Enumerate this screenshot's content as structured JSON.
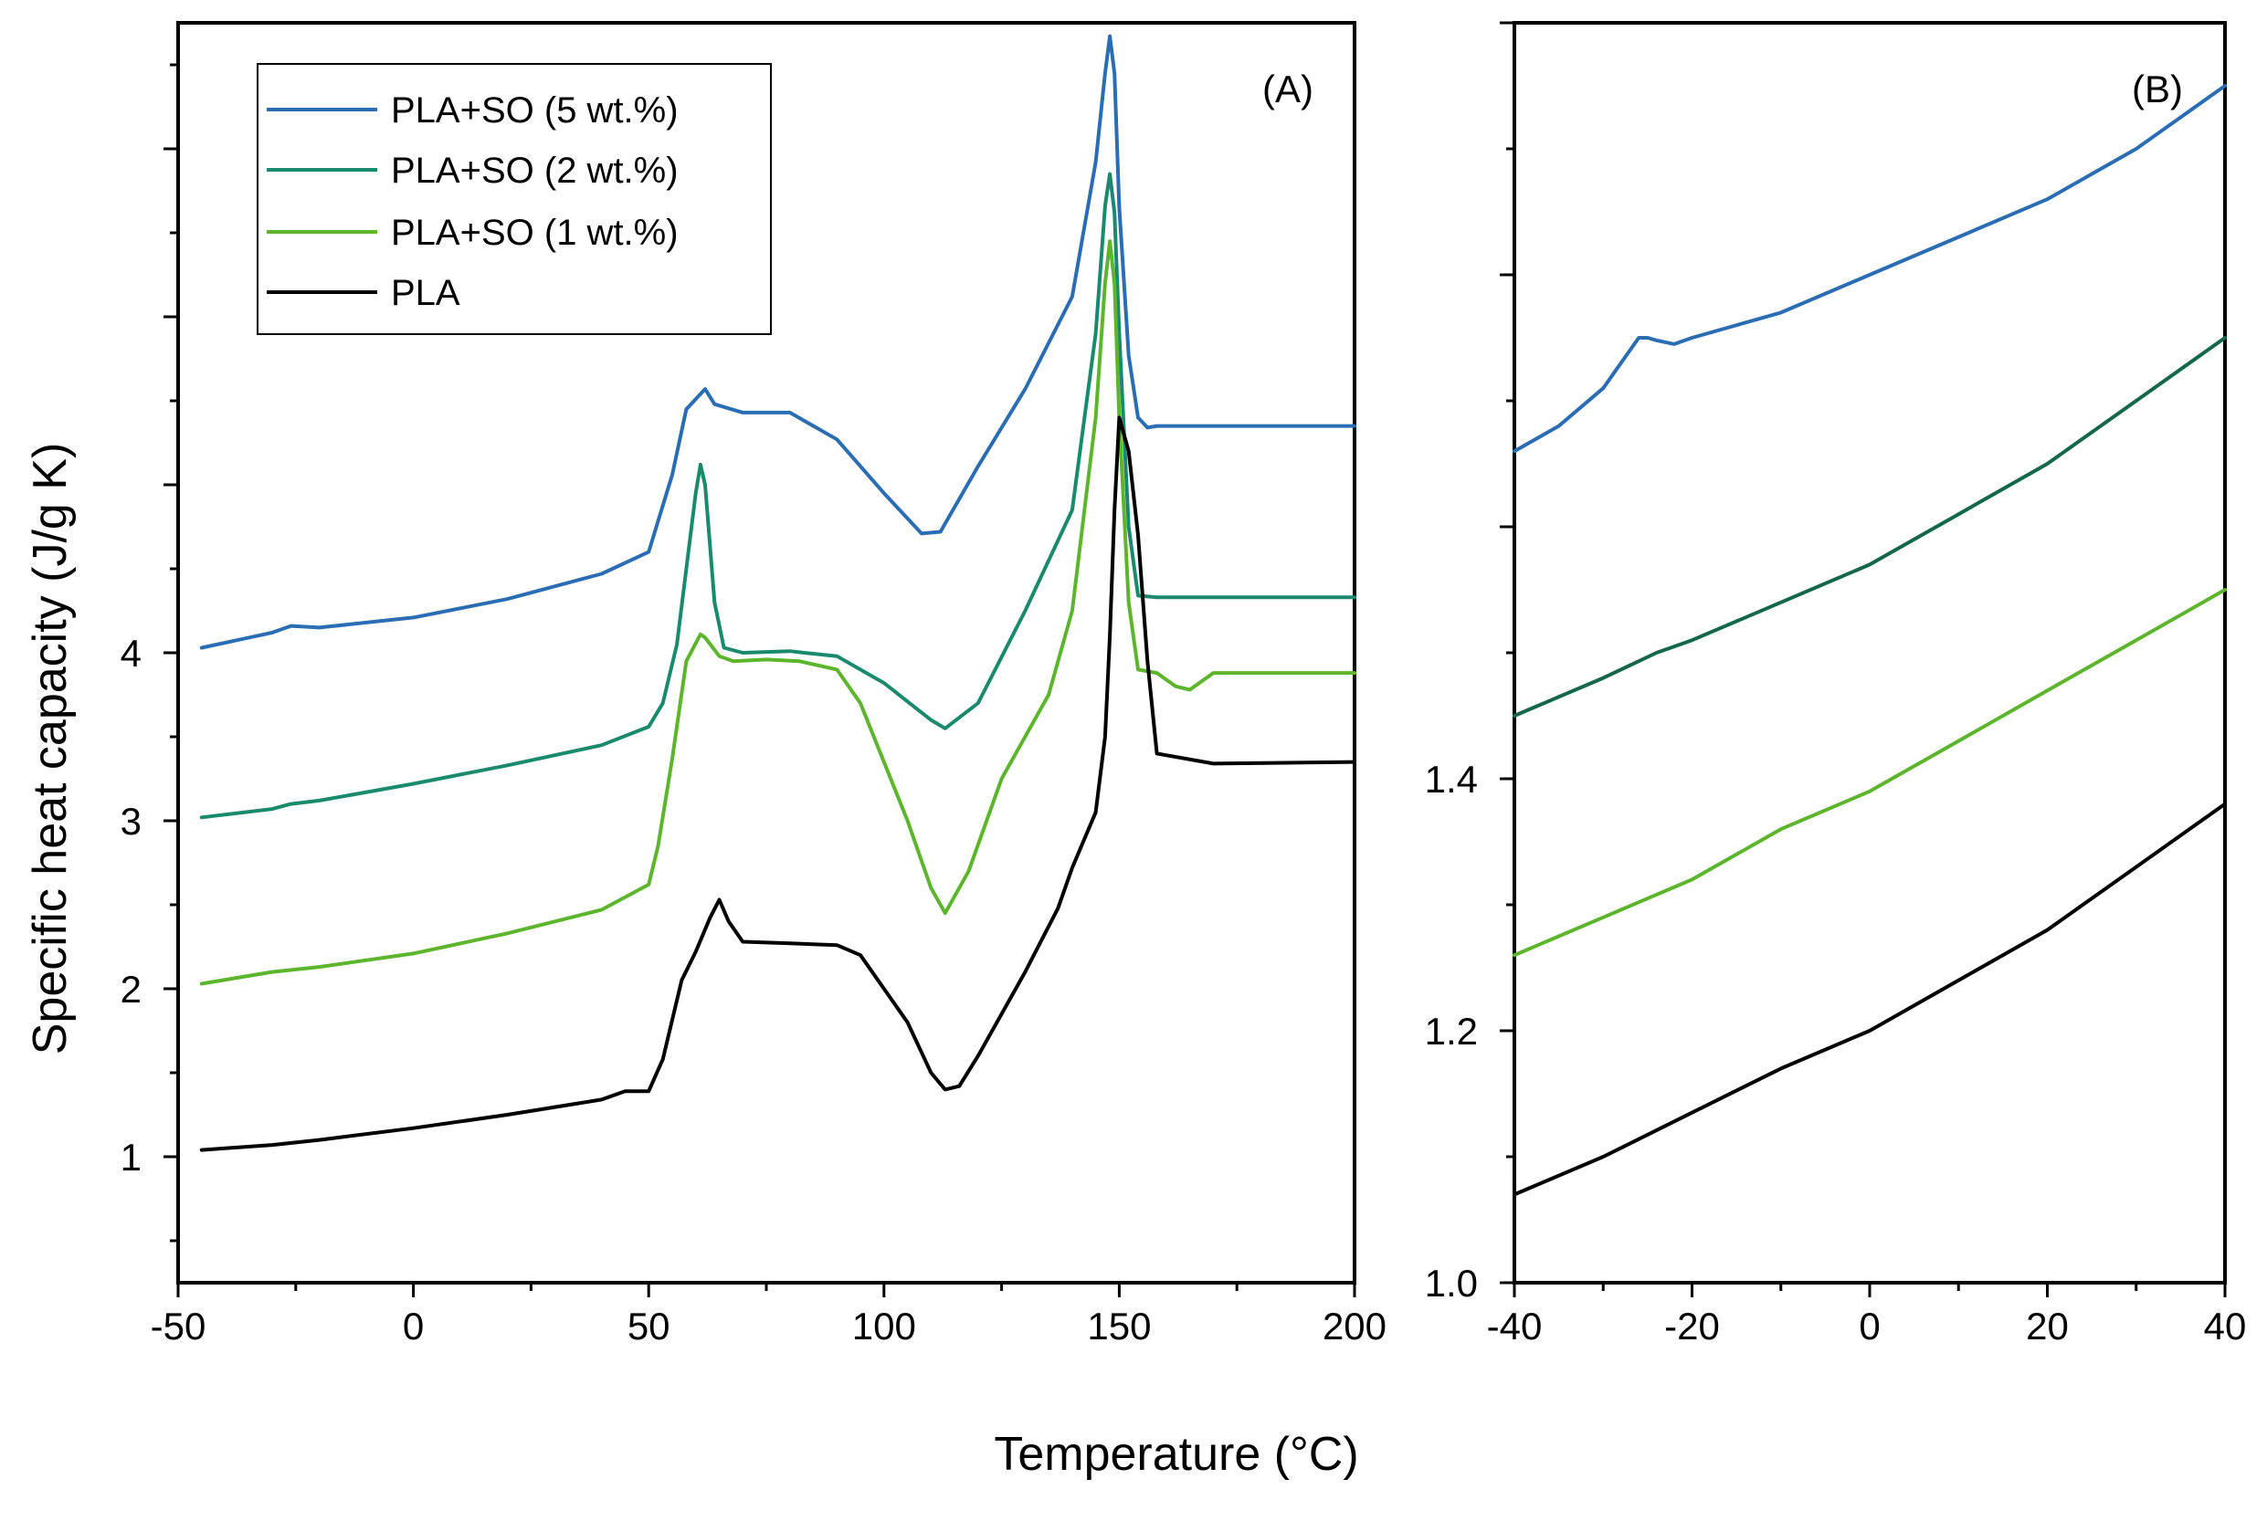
{
  "chart_data": [
    {
      "type": "line",
      "panel_label": "(A)",
      "xlabel": "Temperature (°C)",
      "ylabel": "Specific heat capacity (J/g K)",
      "xlim": [
        -50,
        200
      ],
      "ylim": [
        0.25,
        7.75
      ],
      "xticks": [
        -50,
        0,
        50,
        100,
        150,
        200
      ],
      "xtick_labels": [
        "-50",
        "0",
        "50",
        "100",
        "150",
        "200"
      ],
      "yticks": [
        1,
        2,
        3,
        4
      ],
      "ytick_labels": [
        "1",
        "2",
        "3",
        "4"
      ],
      "legend": {
        "position": "top-left",
        "entries": [
          "PLA+SO (5 wt.%)",
          "PLA+SO (2 wt.%)",
          "PLA+SO (1 wt.%)",
          "PLA"
        ]
      },
      "series": [
        {
          "name": "PLA+SO (5 wt.%)",
          "color": "#2a6db3",
          "x": [
            -45,
            -30,
            -26,
            -20,
            0,
            20,
            40,
            50,
            55,
            58,
            62,
            64,
            70,
            80,
            90,
            100,
            108,
            112,
            120,
            130,
            140,
            145,
            147,
            148,
            149,
            150,
            152,
            154,
            156,
            158,
            170,
            200
          ],
          "y": [
            4.03,
            4.12,
            4.16,
            4.15,
            4.21,
            4.32,
            4.47,
            4.6,
            5.06,
            5.45,
            5.57,
            5.48,
            5.43,
            5.43,
            5.27,
            4.95,
            4.71,
            4.72,
            5.11,
            5.57,
            6.12,
            6.92,
            7.45,
            7.67,
            7.45,
            6.65,
            5.77,
            5.4,
            5.34,
            5.35,
            5.35,
            5.35
          ]
        },
        {
          "name": "PLA+SO (2 wt.%)",
          "color": "#1a8a6e",
          "x": [
            -45,
            -30,
            -26,
            -20,
            0,
            20,
            40,
            50,
            53,
            56,
            58,
            60,
            61,
            62,
            64,
            66,
            70,
            80,
            83,
            90,
            100,
            110,
            113,
            120,
            130,
            140,
            145,
            147,
            148,
            149,
            150,
            152,
            154,
            158,
            170,
            200
          ],
          "y": [
            3.02,
            3.07,
            3.1,
            3.12,
            3.22,
            3.33,
            3.45,
            3.56,
            3.7,
            4.05,
            4.5,
            4.95,
            5.12,
            5.0,
            4.3,
            4.03,
            4.0,
            4.01,
            4.0,
            3.98,
            3.82,
            3.6,
            3.55,
            3.7,
            4.25,
            4.85,
            5.9,
            6.66,
            6.85,
            6.62,
            5.9,
            4.75,
            4.34,
            4.33,
            4.33,
            4.33
          ]
        },
        {
          "name": "PLA+SO (1 wt.%)",
          "color": "#5cb52c",
          "x": [
            -45,
            -30,
            -20,
            0,
            20,
            40,
            50,
            52,
            55,
            58,
            61,
            62,
            65,
            68,
            75,
            82,
            90,
            95,
            100,
            105,
            110,
            113,
            118,
            125,
            135,
            140,
            145,
            147,
            148,
            149,
            150,
            152,
            154,
            158,
            162,
            165,
            170,
            185,
            200
          ],
          "y": [
            2.03,
            2.1,
            2.13,
            2.21,
            2.33,
            2.47,
            2.62,
            2.85,
            3.37,
            3.95,
            4.11,
            4.09,
            3.98,
            3.95,
            3.96,
            3.95,
            3.9,
            3.7,
            3.35,
            3.0,
            2.6,
            2.45,
            2.7,
            3.25,
            3.75,
            4.25,
            5.4,
            6.2,
            6.45,
            6.2,
            5.4,
            4.3,
            3.9,
            3.88,
            3.8,
            3.78,
            3.88,
            3.88,
            3.88
          ]
        },
        {
          "name": "PLA",
          "color": "#000000",
          "x": [
            -45,
            -30,
            -20,
            0,
            20,
            40,
            45,
            50,
            53,
            57,
            60,
            63,
            65,
            67,
            70,
            80,
            90,
            95,
            100,
            105,
            110,
            113,
            116,
            120,
            130,
            137,
            140,
            145,
            147,
            148,
            149,
            150,
            152,
            154,
            156,
            158,
            170,
            200
          ],
          "y": [
            1.04,
            1.07,
            1.1,
            1.17,
            1.25,
            1.34,
            1.39,
            1.39,
            1.58,
            2.05,
            2.22,
            2.42,
            2.53,
            2.4,
            2.28,
            2.27,
            2.26,
            2.2,
            2.0,
            1.8,
            1.5,
            1.4,
            1.42,
            1.6,
            2.1,
            2.48,
            2.72,
            3.05,
            3.5,
            4.1,
            4.85,
            5.4,
            5.2,
            4.7,
            3.95,
            3.4,
            3.34,
            3.35
          ]
        }
      ]
    },
    {
      "type": "line",
      "panel_label": "(B)",
      "xlabel": "Temperature (°C)",
      "xlim": [
        -40,
        40
      ],
      "ylim": [
        1.0,
        2.0
      ],
      "xticks": [
        -40,
        -20,
        0,
        20,
        40
      ],
      "xtick_labels": [
        "-40",
        "-20",
        "0",
        "20",
        "40"
      ],
      "yticks": [
        1.0,
        1.2,
        1.4
      ],
      "ytick_labels": [
        "1.0",
        "1.2",
        "1.4"
      ],
      "series": [
        {
          "name": "PLA+SO (5 wt.%)",
          "color": "#2a6db3",
          "x": [
            -40,
            -35,
            -30,
            -28,
            -26,
            -25,
            -24,
            -22,
            -20,
            -10,
            0,
            10,
            20,
            30,
            40
          ],
          "y": [
            1.66,
            1.68,
            1.71,
            1.73,
            1.75,
            1.75,
            1.748,
            1.745,
            1.75,
            1.77,
            1.8,
            1.83,
            1.86,
            1.9,
            1.95
          ]
        },
        {
          "name": "PLA+SO (2 wt.%)",
          "color": "#13674a",
          "x": [
            -40,
            -30,
            -24,
            -20,
            -10,
            0,
            10,
            20,
            30,
            40
          ],
          "y": [
            1.45,
            1.48,
            1.5,
            1.51,
            1.54,
            1.57,
            1.61,
            1.65,
            1.7,
            1.75
          ]
        },
        {
          "name": "PLA+SO (1 wt.%)",
          "color": "#5cb52c",
          "x": [
            -40,
            -30,
            -20,
            -10,
            0,
            10,
            20,
            30,
            40
          ],
          "y": [
            1.26,
            1.29,
            1.32,
            1.36,
            1.39,
            1.43,
            1.47,
            1.51,
            1.55
          ]
        },
        {
          "name": "PLA",
          "color": "#000000",
          "x": [
            -40,
            -30,
            -20,
            -10,
            0,
            10,
            20,
            30,
            40
          ],
          "y": [
            1.07,
            1.1,
            1.135,
            1.17,
            1.2,
            1.24,
            1.28,
            1.33,
            1.38
          ]
        }
      ]
    }
  ],
  "shared_xlabel": "Temperature (°C)"
}
